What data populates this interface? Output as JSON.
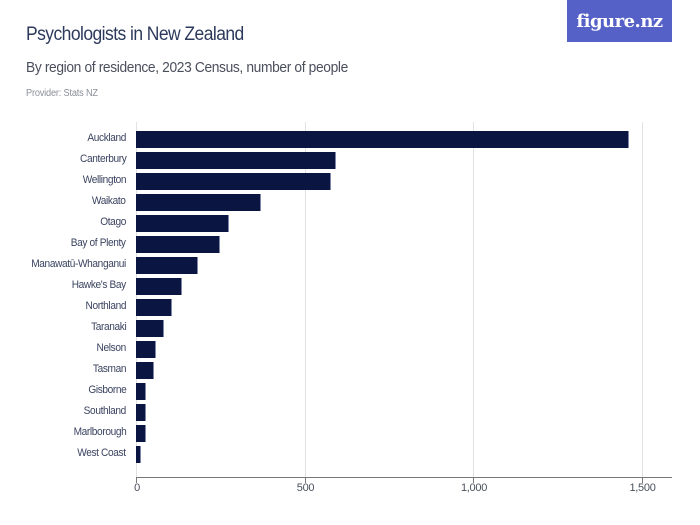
{
  "header": {
    "title": "Psychologists in New Zealand",
    "subtitle": "By region of residence, 2023 Census, number of people",
    "provider": "Provider: Stats NZ",
    "logo_text": "figure.nz"
  },
  "colors": {
    "bar": "#0b1541",
    "logo_bg": "#5561c7",
    "gridline": "#e2e2e2"
  },
  "axis": {
    "ticks": [
      "0",
      "500",
      "1,000",
      "1,500"
    ]
  },
  "chart_data": {
    "type": "bar",
    "orientation": "horizontal",
    "title": "Psychologists in New Zealand",
    "subtitle": "By region of residence, 2023 Census, number of people",
    "xlabel": "",
    "ylabel": "",
    "xlim": [
      0,
      1600
    ],
    "x_ticks": [
      0,
      500,
      1000,
      1500
    ],
    "grid": true,
    "legend": null,
    "categories": [
      "Auckland",
      "Canterbury",
      "Wellington",
      "Waikato",
      "Otago",
      "Bay of Plenty",
      "Manawatū-Whanganui",
      "Hawke's Bay",
      "Northland",
      "Taranaki",
      "Nelson",
      "Tasman",
      "Gisborne",
      "Southland",
      "Marlborough",
      "West Coast"
    ],
    "values": [
      1463,
      592,
      580,
      371,
      276,
      248,
      183,
      137,
      108,
      84,
      60,
      54,
      30,
      30,
      30,
      15
    ]
  }
}
